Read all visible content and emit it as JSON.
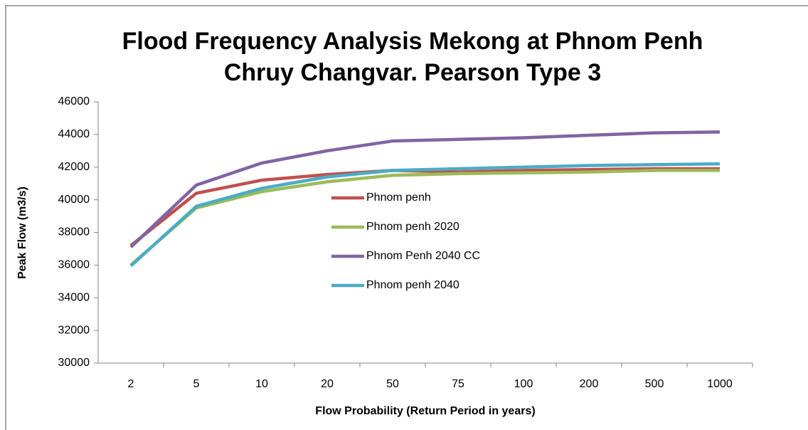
{
  "chart_data": {
    "type": "line",
    "title": [
      "Flood Frequency Analysis Mekong at Phnom Penh",
      "Chruy Changvar. Pearson Type 3"
    ],
    "x_label": "Flow Probability  (Return Period in years)",
    "y_label": "Peak Flow (m3/s)",
    "categories": [
      "2",
      "5",
      "10",
      "20",
      "50",
      "75",
      "100",
      "200",
      "500",
      "1000"
    ],
    "series": [
      {
        "name": "Phnom penh",
        "color": "#c0504d",
        "values": [
          37200,
          40400,
          41200,
          41550,
          41800,
          41700,
          41800,
          41850,
          41900,
          41900
        ]
      },
      {
        "name": "Phnom penh 2020",
        "color": "#9bbb59",
        "values": [
          36000,
          39500,
          40500,
          41100,
          41500,
          41600,
          41650,
          41700,
          41800,
          41800
        ]
      },
      {
        "name": "Phnom Penh 2040 CC",
        "color": "#8064a2",
        "values": [
          37100,
          40900,
          42250,
          43000,
          43600,
          43700,
          43800,
          43950,
          44100,
          44150
        ]
      },
      {
        "name": "Phnom penh 2040",
        "color": "#4bacc6",
        "values": [
          35950,
          39600,
          40700,
          41400,
          41800,
          41900,
          42000,
          42100,
          42150,
          42200
        ]
      }
    ],
    "ylim": [
      30000,
      46000
    ],
    "yticks": [
      30000,
      32000,
      34000,
      36000,
      38000,
      40000,
      42000,
      44000,
      46000
    ],
    "grid": false
  }
}
